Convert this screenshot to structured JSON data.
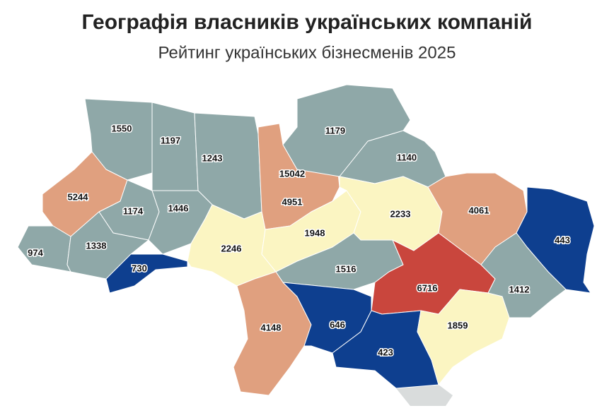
{
  "header": {
    "title": "Географія власників українських компаній",
    "subtitle": "Рейтинг українських бізнесменів 2025"
  },
  "map": {
    "regions": [
      {
        "value": 1550,
        "color": "#8fa8a8"
      },
      {
        "value": 1197,
        "color": "#8fa8a8"
      },
      {
        "value": 1243,
        "color": "#8fa8a8"
      },
      {
        "value": 15042,
        "color": "#a3263a"
      },
      {
        "value": 4951,
        "color": "#e0a07f"
      },
      {
        "value": 1179,
        "color": "#8fa8a8"
      },
      {
        "value": 1140,
        "color": "#8fa8a8"
      },
      {
        "value": 5244,
        "color": "#e0a07f"
      },
      {
        "value": 1174,
        "color": "#8fa8a8"
      },
      {
        "value": 1446,
        "color": "#8fa8a8"
      },
      {
        "value": 974,
        "color": "#8fa8a8"
      },
      {
        "value": 1338,
        "color": "#8fa8a8"
      },
      {
        "value": 730,
        "color": "#0e3f8f"
      },
      {
        "value": 2246,
        "color": "#fbf5c2"
      },
      {
        "value": 1948,
        "color": "#fbf5c2"
      },
      {
        "value": 2233,
        "color": "#fbf5c2"
      },
      {
        "value": 4061,
        "color": "#e0a07f"
      },
      {
        "value": 443,
        "color": "#0e3f8f"
      },
      {
        "value": 1516,
        "color": "#8fa8a8"
      },
      {
        "value": 6716,
        "color": "#c9463d"
      },
      {
        "value": 1412,
        "color": "#8fa8a8"
      },
      {
        "value": 4148,
        "color": "#e0a07f"
      },
      {
        "value": 646,
        "color": "#0e3f8f"
      },
      {
        "value": 423,
        "color": "#0e3f8f"
      },
      {
        "value": 1859,
        "color": "#fbf5c2"
      }
    ]
  }
}
